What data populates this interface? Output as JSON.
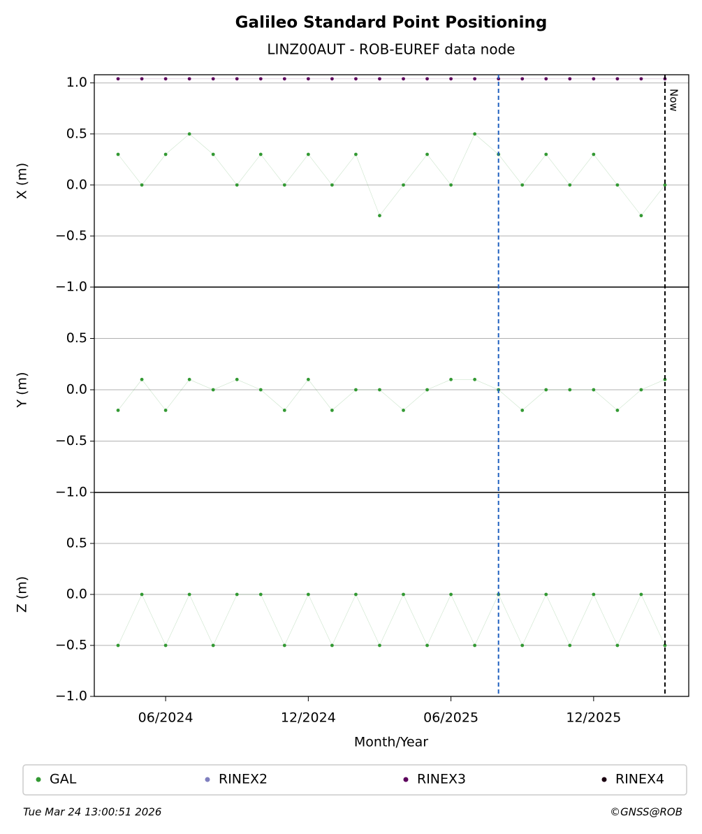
{
  "chart_data": {
    "type": "scatter",
    "title": "Galileo Standard Point Positioning",
    "subtitle": "LINZ00AUT - ROB-EUREF data node",
    "x_label": "Month/Year",
    "x": [
      "2024-04",
      "2024-05",
      "2024-06",
      "2024-07",
      "2024-08",
      "2024-09",
      "2024-10",
      "2024-11",
      "2024-12",
      "2025-01",
      "2025-02",
      "2025-03",
      "2025-04",
      "2025-05",
      "2025-06",
      "2025-07",
      "2025-08",
      "2025-09",
      "2025-10",
      "2025-11",
      "2025-12",
      "2026-01",
      "2026-02",
      "2026-03"
    ],
    "xlim": [
      "2024-03",
      "2026-04"
    ],
    "xticks": [
      {
        "value": "2024-06",
        "label": "06/2024"
      },
      {
        "value": "2024-12",
        "label": "12/2024"
      },
      {
        "value": "2025-06",
        "label": "06/2025"
      },
      {
        "value": "2025-12",
        "label": "12/2025"
      }
    ],
    "vlines": [
      {
        "x": "2025-08",
        "color": "#1f5fbf"
      },
      {
        "x": "2026-03",
        "color": "#000000",
        "label": "Now"
      }
    ],
    "grid": true,
    "panels": [
      {
        "y_label": "X (m)",
        "ylim": [
          -1,
          1.08
        ],
        "yticks": [
          {
            "value": -1,
            "label": "−1.0"
          },
          {
            "value": -0.5,
            "label": "−0.5"
          },
          {
            "value": 0,
            "label": "0.0"
          },
          0.5,
          {
            "value": 1,
            "label": "1.0"
          }
        ],
        "series": [
          {
            "name": "GAL",
            "color": "#339933",
            "values": [
              0.3,
              0,
              0.3,
              0.5,
              0.3,
              0,
              0.3,
              0,
              0.3,
              0,
              0.3,
              -0.3,
              0,
              0.3,
              0,
              0.5,
              0.3,
              0,
              0.3,
              0,
              0.3,
              0,
              -0.3,
              0
            ]
          },
          {
            "name": "RINEX3",
            "color": "#5c005c",
            "values": [
              1.04,
              1.04,
              1.04,
              1.04,
              1.04,
              1.04,
              1.04,
              1.04,
              1.04,
              1.04,
              1.04,
              1.04,
              1.04,
              1.04,
              1.04,
              1.04,
              1.04,
              1.04,
              1.04,
              1.04,
              1.04,
              1.04,
              1.04,
              1.04
            ]
          }
        ]
      },
      {
        "y_label": "Y (m)",
        "ylim": [
          -1,
          1
        ],
        "yticks": [
          {
            "value": -1,
            "label": "−1.0"
          },
          {
            "value": -0.5,
            "label": "−0.5"
          },
          {
            "value": 0,
            "label": "0.0"
          },
          0.5
        ],
        "series": [
          {
            "name": "GAL",
            "color": "#339933",
            "values": [
              -0.2,
              0.1,
              -0.2,
              0.1,
              0,
              0.1,
              0,
              -0.2,
              0.1,
              -0.2,
              0,
              0,
              -0.2,
              0,
              0.1,
              0.1,
              0,
              -0.2,
              0,
              0,
              0,
              -0.2,
              0,
              0.1
            ]
          }
        ]
      },
      {
        "y_label": "Z (m)",
        "ylim": [
          -1,
          1
        ],
        "yticks": [
          {
            "value": -1,
            "label": "−1.0"
          },
          {
            "value": -0.5,
            "label": "−0.5"
          },
          {
            "value": 0,
            "label": "0.0"
          },
          0.5
        ],
        "series": [
          {
            "name": "GAL",
            "color": "#339933",
            "values": [
              -0.5,
              0,
              -0.5,
              0,
              -0.5,
              0,
              0,
              -0.5,
              0,
              -0.5,
              0,
              -0.5,
              0,
              -0.5,
              0,
              -0.5,
              0,
              -0.5,
              0,
              -0.5,
              0,
              -0.5,
              0,
              -0.5
            ]
          }
        ]
      }
    ],
    "legend": [
      {
        "name": "GAL",
        "color": "#339933"
      },
      {
        "name": "RINEX2",
        "color": "#7f7fbf"
      },
      {
        "name": "RINEX3",
        "color": "#5c005c"
      },
      {
        "name": "RINEX4",
        "color": "#1a0010"
      }
    ],
    "timestamp": "Tue Mar 24 13:00:51 2026",
    "copyright": "©GNSS@ROB"
  }
}
